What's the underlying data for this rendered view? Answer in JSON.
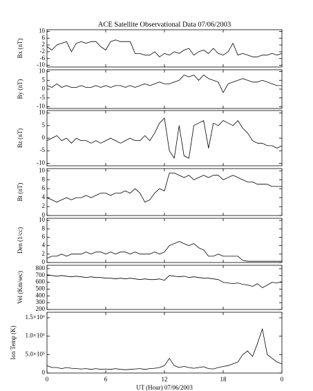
{
  "chart_data": [
    {
      "type": "line",
      "title": "ACE Satellite Observational Data   07/06/2003",
      "ylabel": "Bx (nT)",
      "color": "#000000",
      "x": [
        0,
        0.5,
        1,
        1.5,
        2,
        2.5,
        3,
        3.5,
        4,
        4.5,
        5,
        5.5,
        6,
        6.5,
        7,
        7.5,
        8,
        8.5,
        9,
        9.5,
        10,
        10.5,
        11,
        11.5,
        12,
        12.5,
        13,
        13.5,
        14,
        14.5,
        15,
        15.5,
        16,
        16.5,
        17,
        17.5,
        18,
        18.5,
        19,
        19.5,
        20,
        20.5,
        21,
        21.5,
        22,
        22.5,
        23,
        23.5,
        24
      ],
      "values": [
        1,
        -1,
        2,
        3,
        4,
        -2,
        3,
        4,
        3,
        4,
        4,
        1,
        -1,
        4,
        5,
        4,
        4,
        4,
        -3,
        -3,
        -4,
        -4,
        -2,
        -5,
        -3,
        -4,
        -2,
        -3,
        -1,
        0,
        -4,
        -2,
        -1,
        -3,
        0,
        -3,
        -4,
        -2,
        3,
        -4,
        -3,
        -4,
        -5,
        -5,
        -4,
        -4,
        -3,
        -4,
        -3
      ],
      "xlim": [
        0,
        24
      ],
      "ylim": [
        -11,
        11
      ],
      "yticks": [
        -10,
        -6,
        -2,
        2,
        6,
        10
      ]
    },
    {
      "type": "line",
      "ylabel": "By (nT)",
      "color": "#000000",
      "x": [
        0,
        0.5,
        1,
        1.5,
        2,
        2.5,
        3,
        3.5,
        4,
        4.5,
        5,
        5.5,
        6,
        6.5,
        7,
        7.5,
        8,
        8.5,
        9,
        9.5,
        10,
        10.5,
        11,
        11.5,
        12,
        12.5,
        13,
        13.5,
        14,
        14.5,
        15,
        15.5,
        16,
        16.5,
        17,
        17.5,
        18,
        18.5,
        19,
        19.5,
        20,
        20.5,
        21,
        21.5,
        22,
        22.5,
        23,
        23.5,
        24
      ],
      "values": [
        2,
        1,
        3,
        1,
        2,
        1,
        1,
        2,
        1,
        1,
        2,
        1,
        2,
        1,
        2,
        2,
        1,
        2,
        1,
        2,
        3,
        2,
        3,
        4,
        3,
        3,
        4,
        5,
        8,
        7,
        8,
        5,
        8,
        6,
        5,
        4,
        -2,
        3,
        4,
        5,
        6,
        5,
        4,
        4,
        5,
        4,
        3,
        2,
        2
      ],
      "xlim": [
        0,
        24
      ],
      "ylim": [
        -11,
        11
      ],
      "yticks": [
        -10,
        -5,
        0,
        5,
        10
      ]
    },
    {
      "type": "line",
      "ylabel": "Bz (nT)",
      "color": "#000000",
      "x": [
        0,
        0.5,
        1,
        1.5,
        2,
        2.5,
        3,
        3.5,
        4,
        4.5,
        5,
        5.5,
        6,
        6.5,
        7,
        7.5,
        8,
        8.5,
        9,
        9.5,
        10,
        10.5,
        11,
        11.5,
        12,
        12.5,
        13,
        13.5,
        14,
        14.5,
        15,
        15.5,
        16,
        16.5,
        17,
        17.5,
        18,
        18.5,
        19,
        19.5,
        20,
        20.5,
        21,
        21.5,
        22,
        22.5,
        23,
        23.5,
        24
      ],
      "values": [
        -1,
        0,
        1,
        -1,
        0,
        -2,
        0,
        -1,
        -1,
        -2,
        -1,
        -2,
        -1,
        0,
        -1,
        -2,
        -1,
        0,
        -1,
        -1,
        1,
        -1,
        2,
        6,
        8,
        -5,
        -8,
        5,
        -7,
        -8,
        5,
        6,
        7,
        -4,
        6,
        5,
        7,
        6,
        5,
        7,
        4,
        2,
        -1,
        -2,
        -2,
        -3,
        -3,
        -4,
        -3
      ],
      "xlim": [
        0,
        24
      ],
      "ylim": [
        -11,
        11
      ],
      "yticks": [
        -10,
        -5,
        0,
        5,
        10
      ]
    },
    {
      "type": "line",
      "ylabel": "Bt (nT)",
      "color": "#000000",
      "x": [
        0,
        0.5,
        1,
        1.5,
        2,
        2.5,
        3,
        3.5,
        4,
        4.5,
        5,
        5.5,
        6,
        6.5,
        7,
        7.5,
        8,
        8.5,
        9,
        9.5,
        10,
        10.5,
        11,
        11.5,
        12,
        12.5,
        13,
        13.5,
        14,
        14.5,
        15,
        15.5,
        16,
        16.5,
        17,
        17.5,
        18,
        18.5,
        19,
        19.5,
        20,
        20.5,
        21,
        21.5,
        22,
        22.5,
        23,
        23.5,
        24
      ],
      "values": [
        4,
        3.5,
        3,
        3.5,
        4,
        3.5,
        4,
        4,
        4.5,
        4,
        4.5,
        5,
        5,
        4.5,
        5,
        5,
        5.5,
        5,
        6,
        5,
        3,
        3.5,
        5,
        6,
        5.5,
        9.5,
        9.5,
        9,
        8.5,
        9,
        8,
        8.5,
        9,
        8.5,
        9,
        9,
        8,
        8.5,
        9,
        8.5,
        8,
        7.5,
        7.5,
        7,
        7,
        7,
        6.5,
        6.5,
        6.5
      ],
      "xlim": [
        0,
        24
      ],
      "ylim": [
        0,
        10.5
      ],
      "yticks": [
        0,
        2,
        4,
        6,
        8,
        10
      ]
    },
    {
      "type": "line",
      "ylabel": "Den (1/cc)",
      "color": "#000000",
      "x": [
        0,
        0.5,
        1,
        1.5,
        2,
        2.5,
        3,
        3.5,
        4,
        4.5,
        5,
        5.5,
        6,
        6.5,
        7,
        7.5,
        8,
        8.5,
        9,
        9.5,
        10,
        10.5,
        11,
        11.5,
        12,
        12.5,
        13,
        13.5,
        14,
        14.5,
        15,
        15.5,
        16,
        16.5,
        17,
        17.5,
        18,
        18.5,
        19,
        19.5,
        20,
        20.5,
        21,
        21.5,
        22,
        22.5,
        23,
        23.5,
        24
      ],
      "values": [
        1,
        1.5,
        1.5,
        2,
        1.5,
        2,
        2,
        2,
        2.5,
        2,
        2.5,
        2.5,
        2,
        2.5,
        2,
        2.5,
        2.5,
        2,
        2.5,
        2,
        2,
        2,
        2.5,
        2,
        2.5,
        4,
        4.5,
        5,
        4.5,
        4,
        4.5,
        3.5,
        3,
        1.5,
        1.5,
        2,
        1.5,
        1.5,
        1.5,
        1.5,
        0.5,
        0.3,
        0.3,
        0.3,
        0.3,
        0.3,
        0.3,
        0.3,
        0.3
      ],
      "xlim": [
        0,
        24
      ],
      "ylim": [
        0,
        10.5
      ],
      "yticks": [
        0,
        2,
        4,
        6,
        8,
        10
      ]
    },
    {
      "type": "line",
      "ylabel": "Vel (Km/sec)",
      "color": "#000000",
      "x": [
        0,
        0.5,
        1,
        1.5,
        2,
        2.5,
        3,
        3.5,
        4,
        4.5,
        5,
        5.5,
        6,
        6.5,
        7,
        7.5,
        8,
        8.5,
        9,
        9.5,
        10,
        10.5,
        11,
        11.5,
        12,
        12.5,
        13,
        13.5,
        14,
        14.5,
        15,
        15.5,
        16,
        16.5,
        17,
        17.5,
        18,
        18.5,
        19,
        19.5,
        20,
        20.5,
        21,
        21.5,
        22,
        22.5,
        23,
        23.5,
        24
      ],
      "values": [
        710,
        700,
        690,
        700,
        690,
        680,
        690,
        680,
        670,
        680,
        670,
        670,
        660,
        660,
        650,
        660,
        650,
        660,
        650,
        640,
        650,
        640,
        640,
        650,
        630,
        700,
        690,
        680,
        690,
        670,
        680,
        670,
        660,
        660,
        650,
        640,
        600,
        590,
        580,
        590,
        570,
        560,
        540,
        580,
        520,
        560,
        600,
        590,
        610
      ],
      "xlim": [
        0,
        24
      ],
      "ylim": [
        200,
        850
      ],
      "yticks": [
        200,
        300,
        400,
        500,
        600,
        700,
        800
      ]
    },
    {
      "type": "line",
      "ylabel": "Ion Temp (K)",
      "xlabel": "UT (Hour)   07/06/2003",
      "color": "#000000",
      "x": [
        0,
        0.5,
        1,
        1.5,
        2,
        2.5,
        3,
        3.5,
        4,
        4.5,
        5,
        5.5,
        6,
        6.5,
        7,
        7.5,
        8,
        8.5,
        9,
        9.5,
        10,
        10.5,
        11,
        11.5,
        12,
        12.5,
        13,
        13.5,
        14,
        14.5,
        15,
        15.5,
        16,
        16.5,
        17,
        17.5,
        18,
        18.5,
        19,
        19.5,
        20,
        20.5,
        21,
        21.5,
        22,
        22.5,
        23,
        23.5,
        24
      ],
      "values": [
        200000,
        150000,
        150000,
        120000,
        150000,
        130000,
        120000,
        110000,
        120000,
        100000,
        120000,
        100000,
        110000,
        100000,
        120000,
        100000,
        90000,
        100000,
        110000,
        120000,
        100000,
        120000,
        130000,
        150000,
        200000,
        400000,
        200000,
        150000,
        180000,
        150000,
        130000,
        150000,
        170000,
        120000,
        110000,
        150000,
        180000,
        200000,
        250000,
        300000,
        500000,
        600000,
        450000,
        800000,
        1200000,
        500000,
        400000,
        300000,
        250000
      ],
      "xlim": [
        0,
        24
      ],
      "ylim": [
        0,
        1650000
      ],
      "yticks": [
        0,
        {
          "value": 500000,
          "label": "5.0×10⁵"
        },
        {
          "value": 1000000,
          "label": "1.0×10⁶"
        },
        {
          "value": 1500000,
          "label": "1.5×10⁶"
        }
      ],
      "xticks": [
        0,
        6,
        12,
        18,
        {
          "value": 24,
          "label": "0"
        }
      ]
    }
  ]
}
